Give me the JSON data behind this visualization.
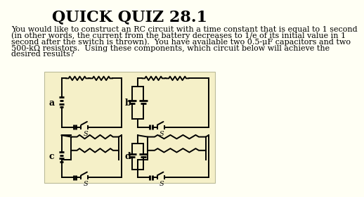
{
  "title": "QUICK QUIZ 28.1",
  "body_text_line1": "You would like to construct an RC circuit with a time constant that is equal to 1 second",
  "body_text_line2": "(in other words, the current from the battery decreases to 1/e of its initial value in 1",
  "body_text_line3": "second after the switch is thrown).  You have available two 0.5-μF capacitors and two",
  "body_text_line4": "500-kΩ resistors.  Using these components, which circuit below will achieve the",
  "body_text_line5": "desired results?",
  "bg_color": "#fffff4",
  "box_color": "#f5f0c8",
  "title_fontsize": 16,
  "body_fontsize": 8.0,
  "lw": 1.4
}
